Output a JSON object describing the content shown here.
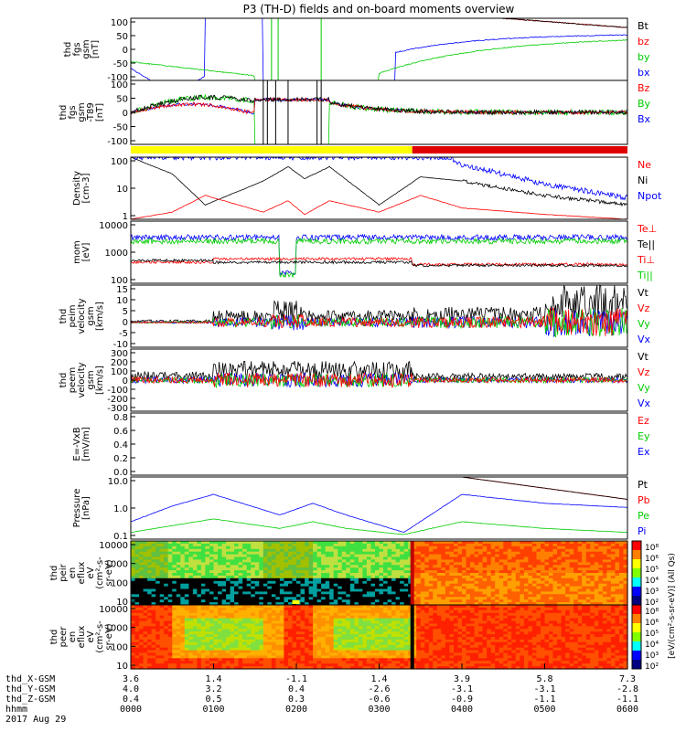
{
  "title": "P3 (TH-D) fields and on-board moments overview",
  "colors": {
    "black": "#000000",
    "red": "#ff0000",
    "green": "#00e000",
    "blue": "#0000ff",
    "yellow": "#ffff00",
    "darkred": "#e00000"
  },
  "panels": [
    {
      "id": "fgs",
      "ylabel": [
        "thd",
        "fgs",
        "gsm",
        "[nT]"
      ],
      "yticks": [
        "100",
        "50",
        "0",
        "-50",
        "-100"
      ],
      "legend": [
        {
          "text": "Bt",
          "color": "#000000"
        },
        {
          "text": "bz",
          "color": "#ff0000"
        },
        {
          "text": "by",
          "color": "#00cc00"
        },
        {
          "text": "bx",
          "color": "#0000ff"
        }
      ]
    },
    {
      "id": "fgs_minus",
      "ylabel": [
        "thd",
        "fgs",
        "gsm",
        "-T89",
        "[nT]"
      ],
      "yticks": [
        "100",
        "50",
        "0",
        "-50",
        "-100"
      ],
      "legend": [
        {
          "text": "Bz",
          "color": "#ff0000"
        },
        {
          "text": "By",
          "color": "#00cc00"
        },
        {
          "text": "Bx",
          "color": "#0000ff"
        }
      ]
    },
    {
      "id": "density",
      "ylabel": [
        "Density",
        "[cm-3]"
      ],
      "yticks": [
        "100",
        "10",
        "1"
      ],
      "legend": [
        {
          "text": "Ne",
          "color": "#ff0000"
        },
        {
          "text": "Ni",
          "color": "#000000"
        },
        {
          "text": "Npot",
          "color": "#0000ff"
        }
      ]
    },
    {
      "id": "temp",
      "ylabel": [
        "mom",
        "[eV]"
      ],
      "yticks": [
        "10000",
        "1000",
        "100"
      ],
      "legend": [
        {
          "text": "Te⊥",
          "color": "#ff0000"
        },
        {
          "text": "Te||",
          "color": "#000000"
        },
        {
          "text": "Ti⊥",
          "color": "#ff0000"
        },
        {
          "text": "Ti||",
          "color": "#00cc00"
        }
      ]
    },
    {
      "id": "peim",
      "ylabel": [
        "thd",
        "peim",
        "velocity",
        "gsm",
        "[km/s]"
      ],
      "yticks": [
        "15",
        "10",
        "5",
        "0",
        "-5",
        "-10"
      ],
      "legend": [
        {
          "text": "Vt",
          "color": "#000000"
        },
        {
          "text": "Vz",
          "color": "#ff0000"
        },
        {
          "text": "Vy",
          "color": "#00cc00"
        },
        {
          "text": "Vx",
          "color": "#0000ff"
        }
      ]
    },
    {
      "id": "peem",
      "ylabel": [
        "thd",
        "peem",
        "velocity",
        "gsm",
        "[km/s]"
      ],
      "yticks": [
        "300",
        "200",
        "100",
        "0",
        "-100",
        "-200",
        "-300"
      ],
      "legend": [
        {
          "text": "Vt",
          "color": "#000000"
        },
        {
          "text": "Vz",
          "color": "#ff0000"
        },
        {
          "text": "Vy",
          "color": "#00cc00"
        },
        {
          "text": "Vx",
          "color": "#0000ff"
        }
      ]
    },
    {
      "id": "efield",
      "ylabel": [
        "E=-VxB",
        "[mV/m]"
      ],
      "yticks": [
        "0.8",
        "0.6",
        "0.4",
        "0.2",
        "0.0"
      ],
      "legend": [
        {
          "text": "Ez",
          "color": "#ff0000"
        },
        {
          "text": "Ey",
          "color": "#00cc00"
        },
        {
          "text": "Ex",
          "color": "#0000ff"
        }
      ]
    },
    {
      "id": "pressure",
      "ylabel": [
        "Pressure",
        "[nPa]"
      ],
      "yticks": [
        "10.0",
        "1.0",
        "0.1"
      ],
      "legend": [
        {
          "text": "Pt",
          "color": "#000000"
        },
        {
          "text": "Pb",
          "color": "#ff0000"
        },
        {
          "text": "Pe",
          "color": "#00cc00"
        },
        {
          "text": "Pi",
          "color": "#0000ff"
        }
      ]
    },
    {
      "id": "peir",
      "ylabel": [
        "thd",
        "peir",
        "en",
        "eflux",
        "eV",
        "(cm²-s-",
        "sr-eV)"
      ],
      "yticks": [
        "10000",
        "1000",
        "100",
        "10"
      ],
      "legend": []
    },
    {
      "id": "peer",
      "ylabel": [
        "thd",
        "peer",
        "en",
        "eflux",
        "eV",
        "(cm²-s-",
        "sr-eV)"
      ],
      "yticks": [
        "10000",
        "1000",
        "100",
        "10"
      ],
      "legend": []
    }
  ],
  "colorbar": {
    "ticks": [
      "10⁸",
      "10⁶",
      "10⁵",
      "10⁴",
      "10³",
      "10²"
    ],
    "ticks2": [
      "10⁸",
      "10⁶",
      "10⁵",
      "10⁴",
      "10³",
      "10²"
    ],
    "label": "[eV/(cm²-s-sr-eV)] (All Qs)"
  },
  "xaxis": {
    "row_labels": [
      "thd_X-GSM",
      "thd_Y-GSM",
      "thd_Z-GSM",
      "hhmm",
      "2017 Aug 29"
    ],
    "ticks": [
      {
        "x": "3.6",
        "y": "4.0",
        "z": "0.4",
        "t": "0000"
      },
      {
        "x": "1.4",
        "y": "3.2",
        "z": "0.5",
        "t": "0100"
      },
      {
        "x": "-1.1",
        "y": "0.4",
        "z": "0.3",
        "t": "0200"
      },
      {
        "x": "1.4",
        "y": "-2.6",
        "z": "-0.6",
        "t": "0300"
      },
      {
        "x": "3.9",
        "y": "-3.1",
        "z": "-0.9",
        "t": "0400"
      },
      {
        "x": "5.8",
        "y": "-3.1",
        "z": "-1.1",
        "t": "0500"
      },
      {
        "x": "7.3",
        "y": "-2.8",
        "z": "-1.1",
        "t": "0600"
      }
    ]
  },
  "chart_data": {
    "type": "line",
    "title": "P3 (TH-D) fields and on-board moments overview",
    "x_range_hhmm": [
      "0000",
      "0600"
    ],
    "mode_bar": [
      {
        "from": "0000",
        "to": "0340",
        "color": "yellow"
      },
      {
        "from": "0340",
        "to": "0600",
        "color": "red"
      }
    ],
    "density_cm3": {
      "x_hours": [
        0,
        0.5,
        0.9,
        1.6,
        1.9,
        2.1,
        2.4,
        3.0,
        3.5,
        4.0,
        5.0,
        6.0
      ],
      "Ni": [
        200,
        40,
        2,
        20,
        80,
        25,
        80,
        2,
        30,
        20,
        5,
        2
      ],
      "Ne": [
        0.5,
        1,
        5,
        1,
        3,
        0.8,
        3,
        1,
        5,
        1.5,
        0.8,
        0.5
      ]
    },
    "pressure_nPa": {
      "x_hours": [
        0,
        0.5,
        1.0,
        1.8,
        2.2,
        2.6,
        3.3,
        4.0,
        5.0,
        6.0
      ],
      "Pi": [
        0.3,
        1.5,
        5,
        0.6,
        2,
        0.6,
        0.1,
        5,
        2,
        1.3
      ],
      "Pe": [
        0.1,
        0.2,
        0.4,
        0.15,
        0.3,
        0.15,
        0.08,
        0.3,
        0.15,
        0.1
      ]
    }
  }
}
